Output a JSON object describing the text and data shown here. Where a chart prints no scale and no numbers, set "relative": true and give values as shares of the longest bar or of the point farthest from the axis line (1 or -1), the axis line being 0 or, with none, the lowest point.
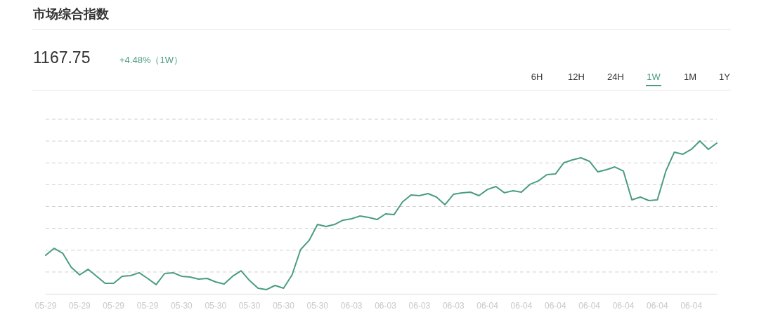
{
  "chart_data": {
    "type": "line",
    "title": "市场综合指数",
    "subtitle": "1167.75",
    "annotations": [
      "+4.48%（1W）",
      "6H",
      "12H",
      "24H",
      "1W",
      "1M",
      "1Y"
    ],
    "relative": true,
    "grid": "y",
    "categories": [
      "05-29",
      null,
      null,
      null,
      "05-29",
      null,
      null,
      null,
      "05-29",
      null,
      null,
      null,
      "05-29",
      null,
      null,
      null,
      "05-30",
      null,
      null,
      null,
      "05-30",
      null,
      null,
      null,
      "05-30",
      null,
      null,
      null,
      "05-30",
      null,
      null,
      null,
      "05-30",
      null,
      null,
      null,
      "06-03",
      null,
      null,
      null,
      "06-03",
      null,
      null,
      null,
      "06-03",
      null,
      null,
      null,
      "06-03",
      null,
      null,
      null,
      "06-04",
      null,
      null,
      null,
      "06-04",
      null,
      null,
      null,
      "06-04",
      null,
      null,
      null,
      "06-04",
      null,
      null,
      null,
      "06-04",
      null,
      null,
      null,
      "06-04",
      null,
      null,
      null,
      "06-04",
      null,
      null,
      null
    ],
    "series": [
      {
        "color": "#4a9d7f",
        "values": [
          0.252,
          0.298,
          0.266,
          0.174,
          0.124,
          0.161,
          0.115,
          0.069,
          0.069,
          0.115,
          0.119,
          0.138,
          0.101,
          0.06,
          0.133,
          0.138,
          0.115,
          0.11,
          0.096,
          0.101,
          0.078,
          0.064,
          0.115,
          0.151,
          0.087,
          0.037,
          0.028,
          0.055,
          0.037,
          0.124,
          0.289,
          0.349,
          0.454,
          0.44,
          0.454,
          0.482,
          0.491,
          0.509,
          0.5,
          0.486,
          0.523,
          0.518,
          0.601,
          0.647,
          0.642,
          0.656,
          0.633,
          0.583,
          0.651,
          0.661,
          0.665,
          0.642,
          0.683,
          0.702,
          0.661,
          0.674,
          0.665,
          0.716,
          0.739,
          0.78,
          0.784,
          0.858,
          0.876,
          0.89,
          0.867,
          0.798,
          0.812,
          0.83,
          0.803,
          0.615,
          0.633,
          0.61,
          0.615,
          0.803,
          0.927,
          0.913,
          0.945,
          1,
          0.945,
          0.986
        ]
      }
    ]
  }
}
